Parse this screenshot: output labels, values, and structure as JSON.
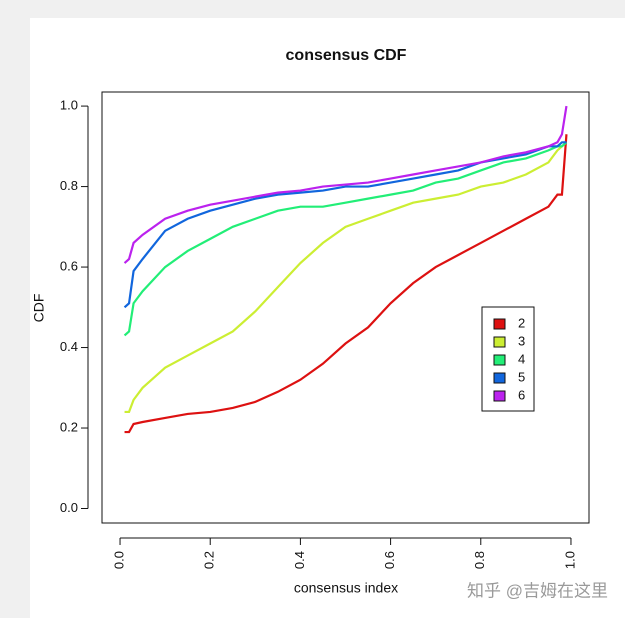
{
  "chart_data": {
    "type": "line",
    "title": "consensus CDF",
    "xlabel": "consensus index",
    "ylabel": "CDF",
    "watermark": "知乎 @吉姆在这里",
    "x": [
      0.01,
      0.02,
      0.03,
      0.05,
      0.1,
      0.15,
      0.2,
      0.25,
      0.3,
      0.35,
      0.4,
      0.45,
      0.5,
      0.55,
      0.6,
      0.65,
      0.7,
      0.75,
      0.8,
      0.85,
      0.9,
      0.95,
      0.97,
      0.98,
      0.99
    ],
    "series": [
      {
        "name": "2",
        "color": "#dd1111",
        "values": [
          0.19,
          0.19,
          0.21,
          0.215,
          0.225,
          0.235,
          0.24,
          0.25,
          0.265,
          0.29,
          0.32,
          0.36,
          0.41,
          0.45,
          0.51,
          0.56,
          0.6,
          0.63,
          0.66,
          0.69,
          0.72,
          0.75,
          0.78,
          0.78,
          0.93
        ]
      },
      {
        "name": "3",
        "color": "#ccee33",
        "values": [
          0.24,
          0.24,
          0.27,
          0.3,
          0.35,
          0.38,
          0.41,
          0.44,
          0.49,
          0.55,
          0.61,
          0.66,
          0.7,
          0.72,
          0.74,
          0.76,
          0.77,
          0.78,
          0.8,
          0.81,
          0.83,
          0.86,
          0.89,
          0.9,
          0.91
        ]
      },
      {
        "name": "4",
        "color": "#22ee77",
        "values": [
          0.43,
          0.44,
          0.51,
          0.54,
          0.6,
          0.64,
          0.67,
          0.7,
          0.72,
          0.74,
          0.75,
          0.75,
          0.76,
          0.77,
          0.78,
          0.79,
          0.81,
          0.82,
          0.84,
          0.86,
          0.87,
          0.89,
          0.9,
          0.9,
          0.91
        ]
      },
      {
        "name": "5",
        "color": "#1166dd",
        "values": [
          0.5,
          0.51,
          0.59,
          0.62,
          0.69,
          0.72,
          0.74,
          0.755,
          0.77,
          0.78,
          0.785,
          0.79,
          0.8,
          0.8,
          0.81,
          0.82,
          0.83,
          0.84,
          0.86,
          0.87,
          0.88,
          0.9,
          0.9,
          0.91,
          0.91
        ]
      },
      {
        "name": "6",
        "color": "#bb22ee",
        "values": [
          0.61,
          0.62,
          0.66,
          0.68,
          0.72,
          0.74,
          0.755,
          0.765,
          0.775,
          0.785,
          0.79,
          0.8,
          0.805,
          0.81,
          0.82,
          0.83,
          0.84,
          0.85,
          0.86,
          0.875,
          0.885,
          0.9,
          0.91,
          0.93,
          1.0
        ]
      }
    ],
    "xlim": [
      -0.04,
      1.04
    ],
    "ylim": [
      -0.036,
      1.035
    ],
    "xticks": [
      {
        "value": 0,
        "label": "0.0"
      },
      0.2,
      0.4,
      0.6,
      0.8,
      {
        "value": 1,
        "label": "1.0"
      }
    ],
    "yticks": [
      {
        "value": 0,
        "label": "0.0"
      },
      0.2,
      0.4,
      0.6,
      0.8,
      {
        "value": 1,
        "label": "1.0"
      }
    ],
    "legend": "right",
    "grid": false
  }
}
